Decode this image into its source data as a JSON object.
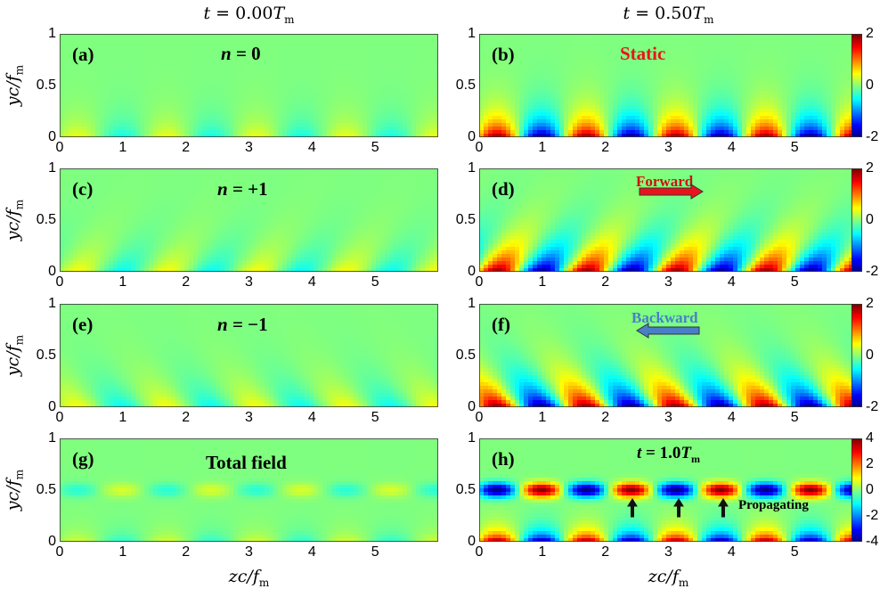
{
  "figure": {
    "col_titles": [
      "t = 0.00T_m",
      "t = 0.50T_m"
    ],
    "xlabel": "zc/f_m",
    "ylabel": "yc/f_m"
  },
  "annotations": {
    "static": "Static",
    "forward": "Forward",
    "backward": "Backward",
    "propagating": "Propagating",
    "t_label": "t = 1.0T_m",
    "colors": {
      "static": "#e8141a",
      "forward": "#cc1111",
      "backward": "#4a7fc8",
      "forward_arrow": "#e8141a",
      "backward_arrow": "#4a7fc8"
    }
  },
  "colormap": {
    "name": "jet"
  },
  "chart_data": [
    {
      "id": "a",
      "type": "heatmap",
      "label": "(a)",
      "annotation": "n = 0",
      "pattern": "static",
      "amplitude": 0.45,
      "xlim": [
        0,
        6.0
      ],
      "ylim": [
        0,
        1
      ],
      "clim": [
        -2,
        2
      ],
      "xticks": [
        0,
        1,
        2,
        3,
        4,
        5
      ],
      "yticks": [
        0,
        0.5,
        1
      ],
      "colorbar": false
    },
    {
      "id": "b",
      "type": "heatmap",
      "label": "(b)",
      "annotation": "Static",
      "pattern": "static",
      "amplitude": 2.0,
      "xlim": [
        0,
        6.0
      ],
      "ylim": [
        0,
        1
      ],
      "clim": [
        -2,
        2
      ],
      "xticks": [
        0,
        1,
        2,
        3,
        4,
        5
      ],
      "yticks": [
        0,
        0.5,
        1
      ],
      "colorbar": true,
      "cbar_ticks": [
        2,
        0,
        -2
      ]
    },
    {
      "id": "c",
      "type": "heatmap",
      "label": "(c)",
      "annotation": "n = +1",
      "pattern": "forward",
      "amplitude": 0.5,
      "xlim": [
        0,
        6.0
      ],
      "ylim": [
        0,
        1
      ],
      "clim": [
        -2,
        2
      ],
      "xticks": [
        0,
        1,
        2,
        3,
        4,
        5
      ],
      "yticks": [
        0,
        0.5,
        1
      ],
      "colorbar": false
    },
    {
      "id": "d",
      "type": "heatmap",
      "label": "(d)",
      "annotation": "Forward",
      "pattern": "forward",
      "amplitude": 2.0,
      "xlim": [
        0,
        6.0
      ],
      "ylim": [
        0,
        1
      ],
      "clim": [
        -2,
        2
      ],
      "xticks": [
        0,
        1,
        2,
        3,
        4,
        5
      ],
      "yticks": [
        0,
        0.5,
        1
      ],
      "colorbar": true,
      "cbar_ticks": [
        2,
        0,
        -2
      ]
    },
    {
      "id": "e",
      "type": "heatmap",
      "label": "(e)",
      "annotation": "n = −1",
      "pattern": "backward",
      "amplitude": 0.5,
      "xlim": [
        0,
        6.0
      ],
      "ylim": [
        0,
        1
      ],
      "clim": [
        -2,
        2
      ],
      "xticks": [
        0,
        1,
        2,
        3,
        4,
        5
      ],
      "yticks": [
        0,
        0.5,
        1
      ],
      "colorbar": false
    },
    {
      "id": "f",
      "type": "heatmap",
      "label": "(f)",
      "annotation": "Backward",
      "pattern": "backward",
      "amplitude": 2.0,
      "xlim": [
        0,
        6.0
      ],
      "ylim": [
        0,
        1
      ],
      "clim": [
        -2,
        2
      ],
      "xticks": [
        0,
        1,
        2,
        3,
        4,
        5
      ],
      "yticks": [
        0,
        0.5,
        1
      ],
      "colorbar": true,
      "cbar_ticks": [
        2,
        0,
        -2
      ]
    },
    {
      "id": "g",
      "type": "heatmap",
      "label": "(g)",
      "annotation": "Total field",
      "pattern": "total",
      "amplitude": 0.7,
      "xlim": [
        0,
        6.0
      ],
      "ylim": [
        0,
        1
      ],
      "clim": [
        -4,
        4
      ],
      "xticks": [
        0,
        1,
        2,
        3,
        4,
        5
      ],
      "yticks": [
        0,
        0.5,
        1
      ],
      "colorbar": false
    },
    {
      "id": "h",
      "type": "heatmap",
      "label": "(h)",
      "annotation": "t = 1.0T_m",
      "pattern": "total",
      "amplitude": 4.0,
      "xlim": [
        0,
        6.0
      ],
      "ylim": [
        0,
        1
      ],
      "clim": [
        -4,
        4
      ],
      "xticks": [
        0,
        1,
        2,
        3,
        4,
        5
      ],
      "yticks": [
        0,
        0.5,
        1
      ],
      "colorbar": true,
      "cbar_ticks": [
        4,
        2,
        0,
        -2,
        -4
      ]
    }
  ]
}
